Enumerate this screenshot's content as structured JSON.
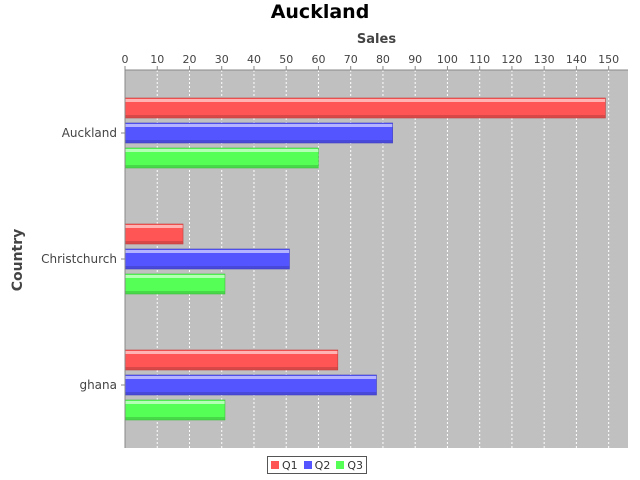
{
  "chart_data": {
    "type": "bar",
    "orientation": "horizontal",
    "title": "Auckland",
    "xlabel": "Sales",
    "ylabel": "Country",
    "categories": [
      "Auckland",
      "Christchurch",
      "ghana"
    ],
    "series": [
      {
        "name": "Q1",
        "color": "#ff5555",
        "values": [
          149,
          18,
          66
        ]
      },
      {
        "name": "Q2",
        "color": "#5555ff",
        "values": [
          83,
          51,
          78
        ]
      },
      {
        "name": "Q3",
        "color": "#55ff55",
        "values": [
          60,
          31,
          31
        ]
      }
    ],
    "xlim": [
      0,
      156
    ],
    "ticks": [
      0,
      10,
      20,
      30,
      40,
      50,
      60,
      70,
      80,
      90,
      100,
      110,
      120,
      130,
      140,
      150
    ],
    "grid": true,
    "legend": "bottom-center"
  }
}
